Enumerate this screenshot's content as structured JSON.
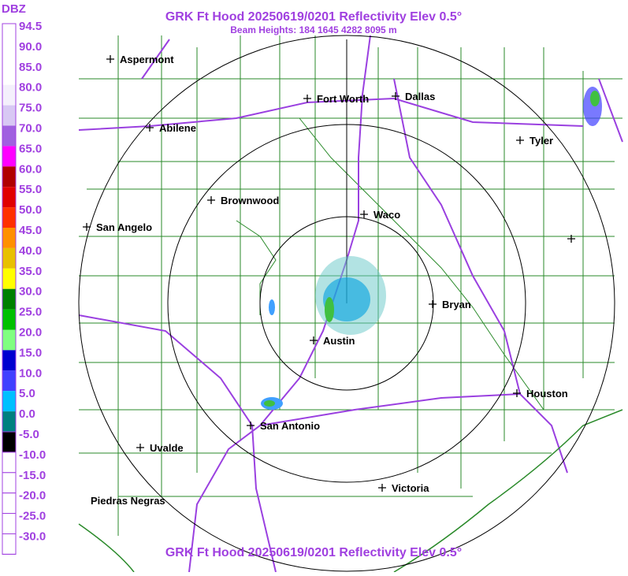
{
  "header": {
    "title": "GRK Ft Hood 20250619/0201 Reflectivity Elev 0.5°",
    "subtitle": "Beam Heights: 184 1645 4282 8095 m"
  },
  "footer": {
    "title": "GRK Ft Hood 20250619/0201 Reflectivity Elev 0.5°"
  },
  "legend": {
    "title": "DBZ",
    "entries": [
      {
        "label": "94.5",
        "color": "#ffffff"
      },
      {
        "label": "90.0",
        "color": "#ffffff"
      },
      {
        "label": "85.0",
        "color": "#ffffff"
      },
      {
        "label": "80.0",
        "color": "#f4f0fc"
      },
      {
        "label": "75.0",
        "color": "#d8c8f4"
      },
      {
        "label": "70.0",
        "color": "#a060e0"
      },
      {
        "label": "65.0",
        "color": "#ff00ff"
      },
      {
        "label": "60.0",
        "color": "#b00000"
      },
      {
        "label": "55.0",
        "color": "#e00000"
      },
      {
        "label": "50.0",
        "color": "#ff3000"
      },
      {
        "label": "45.0",
        "color": "#ff9000"
      },
      {
        "label": "40.0",
        "color": "#e8c000"
      },
      {
        "label": "35.0",
        "color": "#ffff00"
      },
      {
        "label": "30.0",
        "color": "#008000"
      },
      {
        "label": "25.0",
        "color": "#00c000"
      },
      {
        "label": "20.0",
        "color": "#80ff80"
      },
      {
        "label": "15.0",
        "color": "#0000d0"
      },
      {
        "label": "10.0",
        "color": "#4040ff"
      },
      {
        "label": "5.0",
        "color": "#00c0ff"
      },
      {
        "label": "0.0",
        "color": "#008080"
      },
      {
        "label": "-5.0",
        "color": "#000000"
      },
      {
        "label": "-10.0",
        "color": "#ffffff"
      },
      {
        "label": "-15.0",
        "color": "#ffffff"
      },
      {
        "label": "-20.0",
        "color": "#ffffff"
      },
      {
        "label": "-25.0",
        "color": "#ffffff"
      },
      {
        "label": "-30.0",
        "color": "#ffffff"
      }
    ]
  },
  "cities": [
    {
      "name": "Aspermont"
    },
    {
      "name": "Fort Worth"
    },
    {
      "name": "Dallas"
    },
    {
      "name": "Abilene"
    },
    {
      "name": "Tyler"
    },
    {
      "name": "Brownwood"
    },
    {
      "name": "Waco"
    },
    {
      "name": "San Angelo"
    },
    {
      "name": "Bryan"
    },
    {
      "name": "Austin"
    },
    {
      "name": "Houston"
    },
    {
      "name": "San Antonio"
    },
    {
      "name": "Uvalde"
    },
    {
      "name": "Victoria"
    },
    {
      "name": "Piedras Negras"
    }
  ]
}
